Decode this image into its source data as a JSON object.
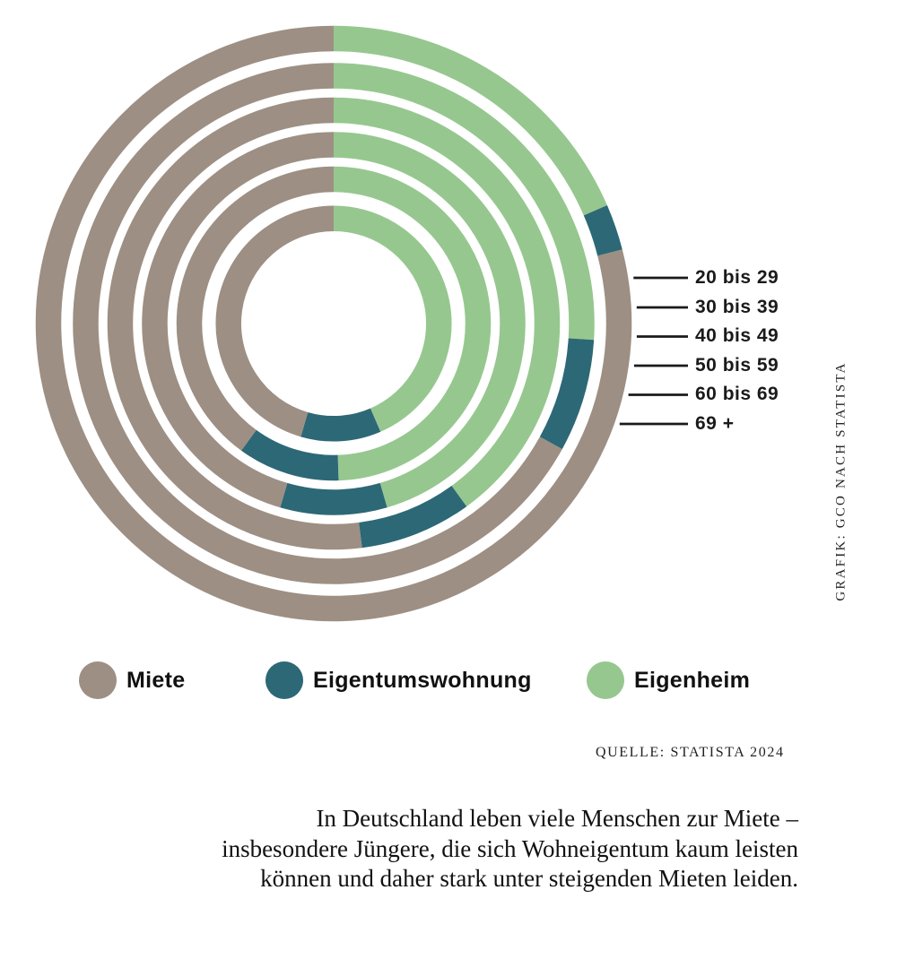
{
  "colors": {
    "miete": "#9D8F83",
    "eigentumswohnung": "#2D6876",
    "eigenheim": "#96C78F",
    "text": "#1A1A1A",
    "leader_line": "#1A1A1A"
  },
  "chart_data": {
    "type": "donut",
    "variant": "six concentric rings, one ring per age group, outermost ring = youngest group",
    "title": "",
    "unit": "percent (estimated from arc angles)",
    "segment_order_clockwise_from_12": [
      "Eigenheim",
      "Eigentumswohnung",
      "Miete"
    ],
    "categories": [
      "20 bis 29",
      "30 bis 39",
      "40 bis 49",
      "50 bis 59",
      "60 bis 69",
      "69 +"
    ],
    "rings_order": "outermost_to_innermost",
    "series": [
      {
        "name": "Miete",
        "values": [
          79,
          67,
          52,
          45.5,
          40,
          45.5
        ]
      },
      {
        "name": "Eigentumswohnung",
        "values": [
          2.5,
          7,
          8,
          9,
          10.5,
          11
        ]
      },
      {
        "name": "Eigenheim",
        "values": [
          18.5,
          26,
          40,
          45.5,
          49.5,
          43.5
        ]
      }
    ],
    "legend_position": "bottom",
    "grid": false
  },
  "legend": {
    "items": [
      {
        "label": "Miete"
      },
      {
        "label": "Eigentumswohnung"
      },
      {
        "label": "Eigenheim"
      }
    ]
  },
  "source_text": "QUELLE: STATISTA 2024",
  "credit_text": "GRAFIK: GCO NACH STATISTA",
  "caption_lines": [
    "In Deutschland leben viele Menschen zur Miete –",
    "insbesondere Jüngere, die sich Wohneigentum kaum leisten",
    "können und daher stark unter steigenden Mieten leiden."
  ]
}
